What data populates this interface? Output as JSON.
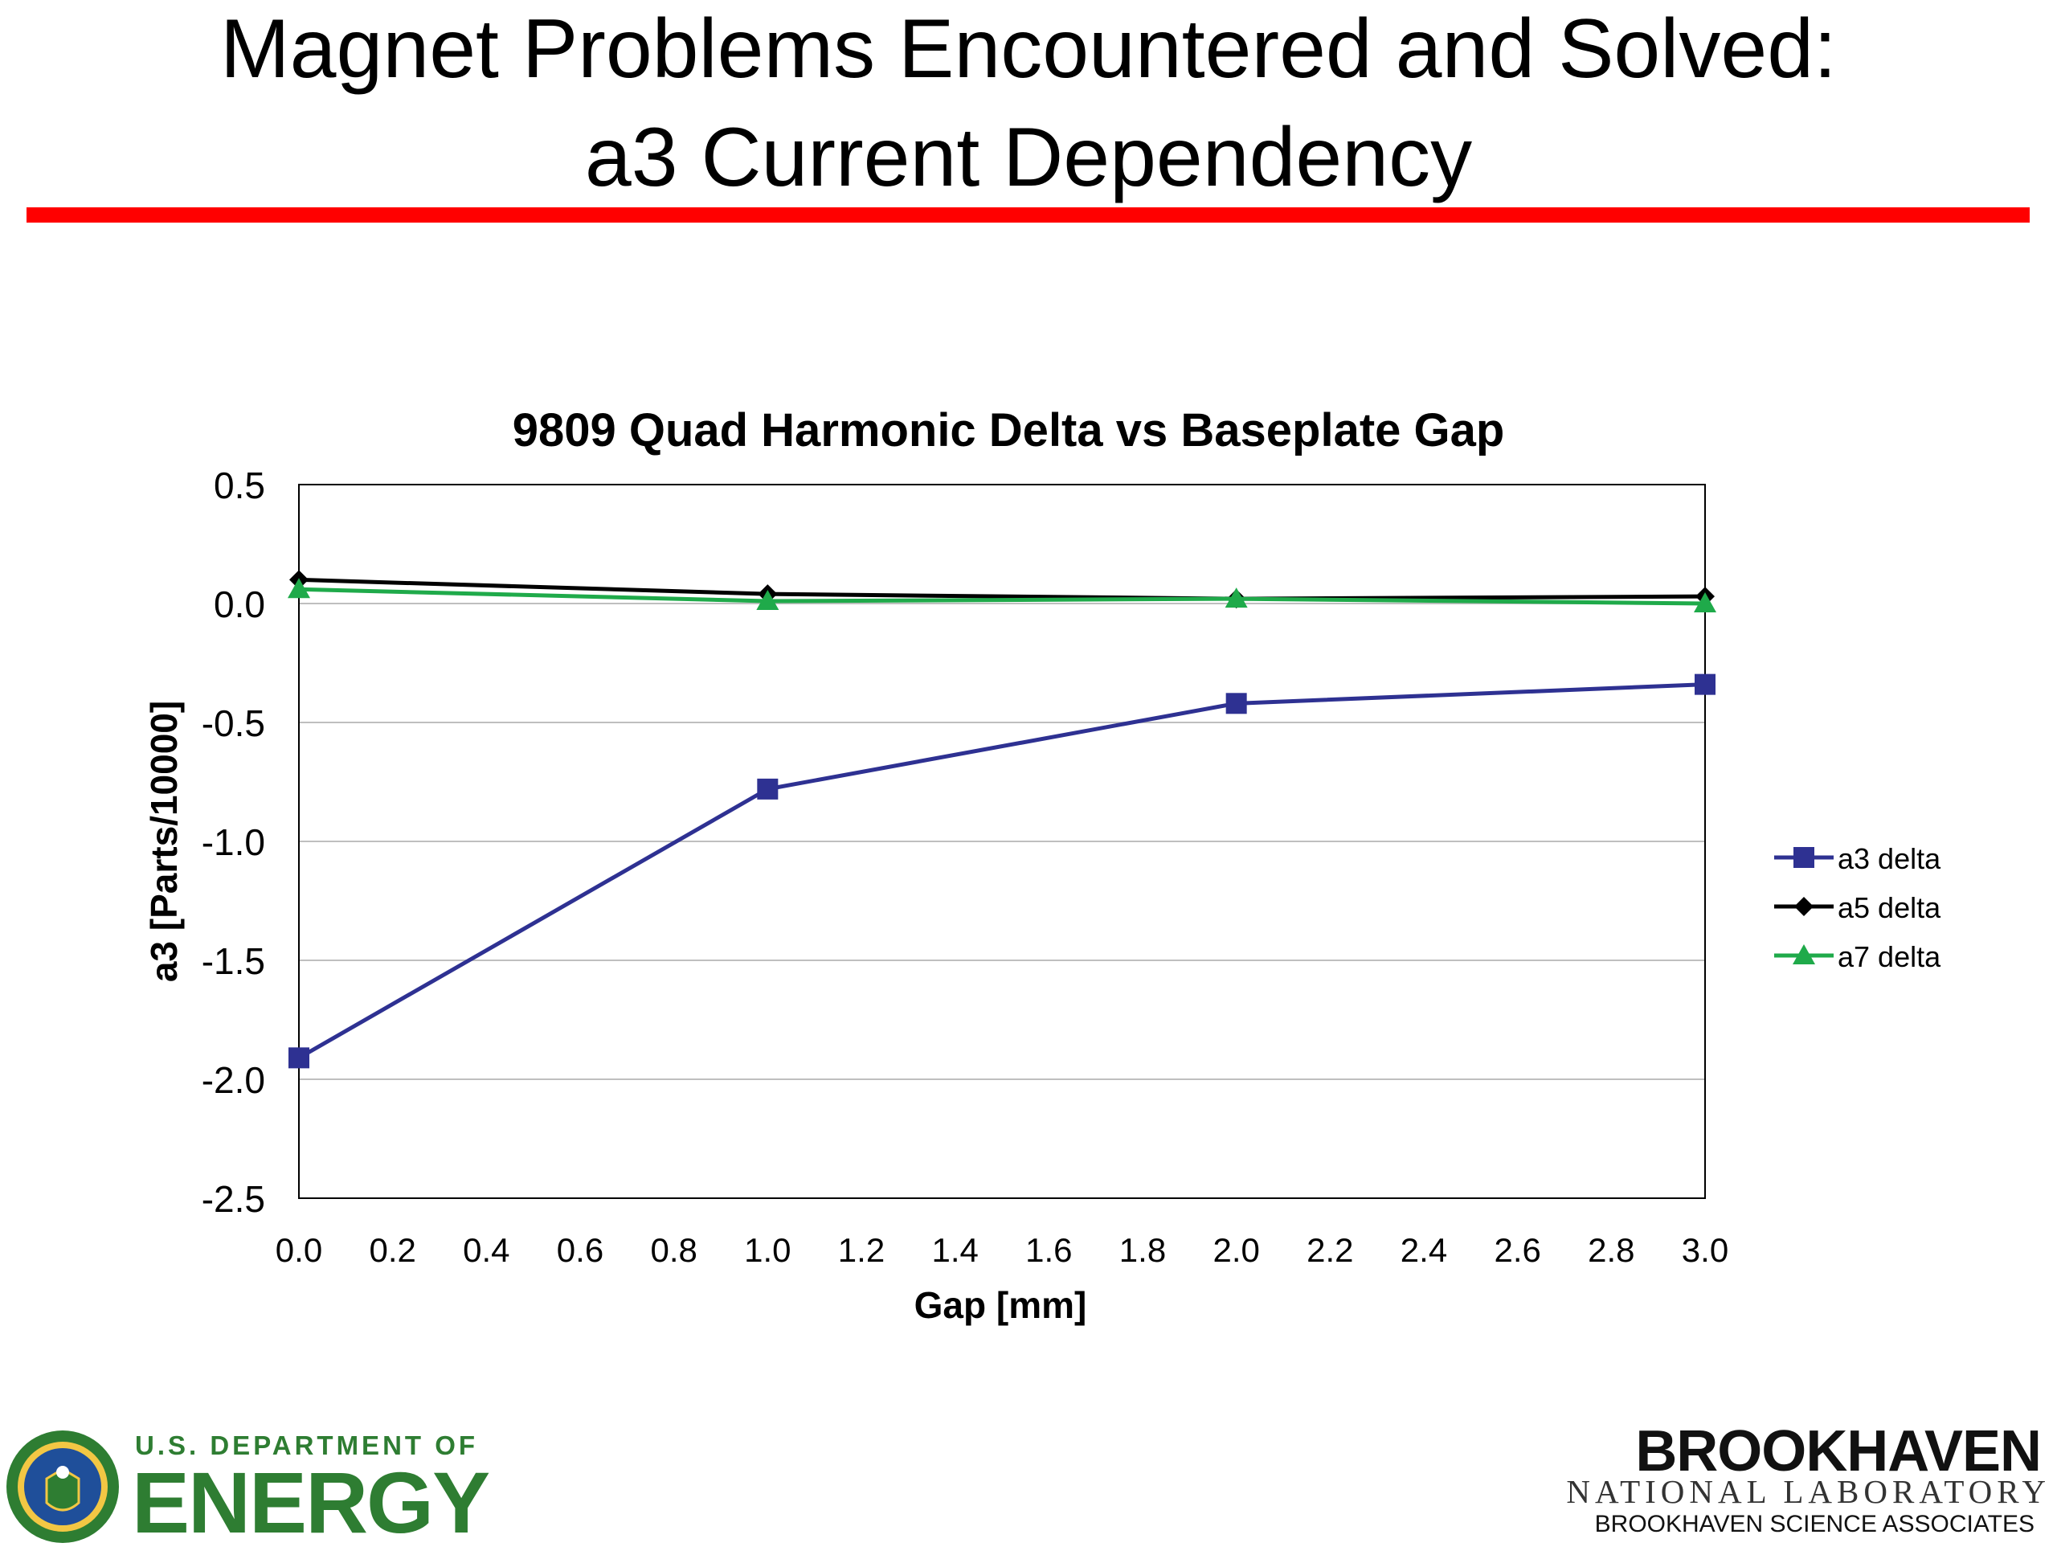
{
  "slide": {
    "title_line1": "Magnet Problems Encountered and Solved:",
    "title_line2": "a3 Current Dependency",
    "rule_color": "#ff0000"
  },
  "chart_data": {
    "type": "line",
    "title": "9809 Quad Harmonic Delta vs Baseplate Gap",
    "xlabel": "Gap [mm]",
    "ylabel": "a3 [Parts/10000]",
    "xlim": [
      0.0,
      3.0
    ],
    "ylim": [
      -2.5,
      0.5
    ],
    "xticks": [
      "0.0",
      "0.2",
      "0.4",
      "0.6",
      "0.8",
      "1.0",
      "1.2",
      "1.4",
      "1.6",
      "1.8",
      "2.0",
      "2.2",
      "2.4",
      "2.6",
      "2.8",
      "3.0"
    ],
    "yticks": [
      "0.5",
      "0.0",
      "-0.5",
      "-1.0",
      "-1.5",
      "-2.0",
      "-2.5"
    ],
    "grid": "horizontal",
    "legend_position": "right",
    "x": [
      0.0,
      1.0,
      2.0,
      3.0
    ],
    "series": [
      {
        "name": "a3 delta",
        "values": [
          -1.91,
          -0.78,
          -0.42,
          -0.34
        ],
        "color": "#2e3192",
        "marker": "square"
      },
      {
        "name": "a5 delta",
        "values": [
          0.1,
          0.04,
          0.02,
          0.03
        ],
        "color": "#000000",
        "marker": "diamond"
      },
      {
        "name": "a7 delta",
        "values": [
          0.06,
          0.01,
          0.02,
          0.0
        ],
        "color": "#1faa4a",
        "marker": "triangle"
      }
    ]
  },
  "footer": {
    "doe_line1": "U.S. DEPARTMENT OF",
    "doe_line2": "ENERGY",
    "doe_color": "#2e7d32",
    "bnl_line1": "BROOKHAVEN",
    "bnl_line2": "NATIONAL LABORATORY",
    "bnl_line3": "BROOKHAVEN SCIENCE ASSOCIATES"
  }
}
